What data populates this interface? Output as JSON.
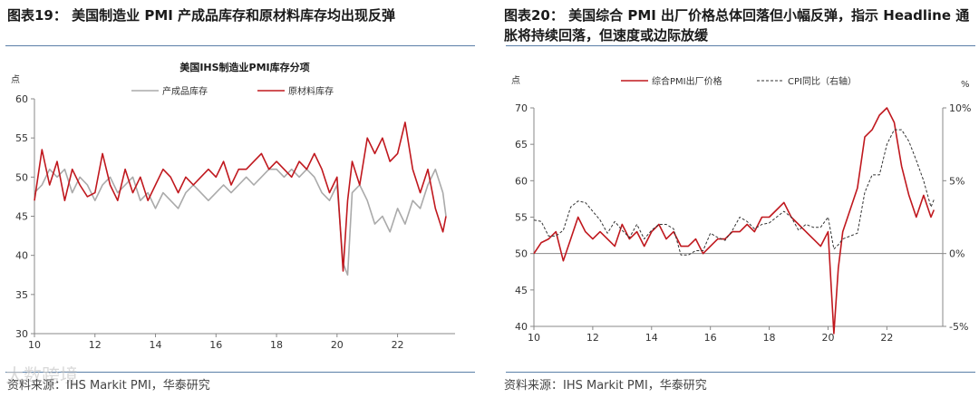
{
  "left": {
    "fig_label": "图表19：",
    "fig_title": "美国制造业 PMI 产成品库存和原材料库存均出现反弹",
    "source": "资料来源：IHS Markit PMI，华泰研究",
    "watermark": "大数跨境",
    "colors": {
      "finished": "#aaaaaa",
      "raw": "#c0181e"
    }
  },
  "right": {
    "fig_label": "图表20：",
    "fig_title": "美国综合 PMI 出厂价格总体回落但小幅反弹，指示 Headline 通胀将持续回落，但速度或边际放缓",
    "source": "资料来源：IHS Markit PMI，华泰研究",
    "colors": {
      "pmi": "#c0181e",
      "cpi": "#333333"
    }
  },
  "chart_data": [
    {
      "type": "line",
      "title": "美国IHS制造业PMI库存分项",
      "ylabel": "点",
      "ylim": [
        30,
        60
      ],
      "yticks": [
        30,
        35,
        40,
        45,
        50,
        55,
        60
      ],
      "xlim": [
        2010,
        2023.9
      ],
      "xticks": [
        2010,
        2012,
        2014,
        2016,
        2018,
        2020,
        2022
      ],
      "xtick_labels": [
        "10",
        "12",
        "14",
        "16",
        "18",
        "20",
        "22"
      ],
      "series": [
        {
          "name": "产成品库存",
          "x": [
            2010.0,
            2010.25,
            2010.5,
            2010.75,
            2011.0,
            2011.25,
            2011.5,
            2011.75,
            2012.0,
            2012.25,
            2012.5,
            2012.75,
            2013.0,
            2013.25,
            2013.5,
            2013.75,
            2014.0,
            2014.25,
            2014.5,
            2014.75,
            2015.0,
            2015.25,
            2015.5,
            2015.75,
            2016.0,
            2016.25,
            2016.5,
            2016.75,
            2017.0,
            2017.25,
            2017.5,
            2017.75,
            2018.0,
            2018.25,
            2018.5,
            2018.75,
            2019.0,
            2019.25,
            2019.5,
            2019.75,
            2020.0,
            2020.2,
            2020.35,
            2020.5,
            2020.75,
            2021.0,
            2021.25,
            2021.5,
            2021.75,
            2022.0,
            2022.25,
            2022.5,
            2022.75,
            2023.0,
            2023.25,
            2023.5,
            2023.6
          ],
          "values": [
            48,
            49,
            51,
            50,
            51,
            48,
            50,
            49,
            47,
            49,
            50,
            48,
            49,
            50,
            47,
            48,
            46,
            48,
            47,
            46,
            48,
            49,
            48,
            47,
            48,
            49,
            48,
            49,
            50,
            49,
            50,
            51,
            51,
            50,
            51,
            50,
            51,
            50,
            48,
            47,
            49,
            39,
            37.5,
            48,
            49,
            47,
            44,
            45,
            43,
            46,
            44,
            47,
            46,
            49,
            51,
            48,
            45
          ]
        },
        {
          "name": "原材料库存",
          "x": [
            2010.0,
            2010.25,
            2010.5,
            2010.75,
            2011.0,
            2011.25,
            2011.5,
            2011.75,
            2012.0,
            2012.25,
            2012.5,
            2012.75,
            2013.0,
            2013.25,
            2013.5,
            2013.75,
            2014.0,
            2014.25,
            2014.5,
            2014.75,
            2015.0,
            2015.25,
            2015.5,
            2015.75,
            2016.0,
            2016.25,
            2016.5,
            2016.75,
            2017.0,
            2017.25,
            2017.5,
            2017.75,
            2018.0,
            2018.25,
            2018.5,
            2018.75,
            2019.0,
            2019.25,
            2019.5,
            2019.75,
            2020.0,
            2020.2,
            2020.35,
            2020.5,
            2020.75,
            2021.0,
            2021.25,
            2021.5,
            2021.75,
            2022.0,
            2022.25,
            2022.5,
            2022.75,
            2023.0,
            2023.25,
            2023.5,
            2023.6
          ],
          "values": [
            47,
            53.5,
            49,
            52,
            47,
            51,
            49,
            47.5,
            48,
            53,
            49,
            47,
            51,
            48,
            50,
            47,
            49,
            51,
            50,
            48,
            50,
            49,
            50,
            51,
            50,
            52,
            49,
            51,
            51,
            52,
            53,
            51,
            52,
            51,
            50,
            52,
            51,
            53,
            51,
            48,
            50,
            38,
            47,
            52,
            49,
            55,
            53,
            55,
            52,
            53,
            57,
            51,
            48,
            51,
            46,
            43,
            45
          ]
        }
      ]
    },
    {
      "type": "line",
      "ylabel": "点",
      "y2label": "%",
      "ylim": [
        40,
        70
      ],
      "yticks": [
        40,
        45,
        50,
        55,
        60,
        65,
        70
      ],
      "y2lim": [
        -5,
        10
      ],
      "y2ticks": [
        -5,
        0,
        5,
        10
      ],
      "y2tick_labels": [
        "-5%",
        "0%",
        "5%",
        "10%"
      ],
      "xlim": [
        2010,
        2023.9
      ],
      "xticks": [
        2010,
        2012,
        2014,
        2016,
        2018,
        2020,
        2022
      ],
      "xtick_labels": [
        "10",
        "12",
        "14",
        "16",
        "18",
        "20",
        "22"
      ],
      "series": [
        {
          "name": "综合PMI出厂价格",
          "axis": "left",
          "x": [
            2010.0,
            2010.25,
            2010.5,
            2010.75,
            2011.0,
            2011.25,
            2011.5,
            2011.75,
            2012.0,
            2012.25,
            2012.5,
            2012.75,
            2013.0,
            2013.25,
            2013.5,
            2013.75,
            2014.0,
            2014.25,
            2014.5,
            2014.75,
            2015.0,
            2015.25,
            2015.5,
            2015.75,
            2016.0,
            2016.25,
            2016.5,
            2016.75,
            2017.0,
            2017.25,
            2017.5,
            2017.75,
            2018.0,
            2018.25,
            2018.5,
            2018.75,
            2019.0,
            2019.25,
            2019.5,
            2019.75,
            2020.0,
            2020.2,
            2020.35,
            2020.5,
            2020.75,
            2021.0,
            2021.25,
            2021.5,
            2021.75,
            2022.0,
            2022.25,
            2022.5,
            2022.75,
            2023.0,
            2023.25,
            2023.5,
            2023.6
          ],
          "values": [
            50,
            51.5,
            52,
            53,
            49,
            52,
            55,
            53,
            52,
            53,
            52,
            51,
            54,
            52,
            53,
            51,
            53,
            54,
            52,
            53,
            51,
            51,
            52,
            50,
            51,
            52,
            52,
            53,
            53,
            54,
            53,
            55,
            55,
            56,
            57,
            55,
            54,
            53,
            52,
            51,
            53,
            39,
            48,
            53,
            56,
            59,
            66,
            67,
            69,
            70,
            68,
            62,
            58,
            55,
            58,
            55,
            56
          ]
        },
        {
          "name": "CPI同比（右轴）",
          "axis": "right",
          "x": [
            2010.0,
            2010.25,
            2010.5,
            2010.75,
            2011.0,
            2011.25,
            2011.5,
            2011.75,
            2012.0,
            2012.25,
            2012.5,
            2012.75,
            2013.0,
            2013.25,
            2013.5,
            2013.75,
            2014.0,
            2014.25,
            2014.5,
            2014.75,
            2015.0,
            2015.25,
            2015.5,
            2015.75,
            2016.0,
            2016.25,
            2016.5,
            2016.75,
            2017.0,
            2017.25,
            2017.5,
            2017.75,
            2018.0,
            2018.25,
            2018.5,
            2018.75,
            2019.0,
            2019.25,
            2019.5,
            2019.75,
            2020.0,
            2020.2,
            2020.35,
            2020.5,
            2020.75,
            2021.0,
            2021.25,
            2021.5,
            2021.75,
            2022.0,
            2022.25,
            2022.5,
            2022.75,
            2023.0,
            2023.25,
            2023.5,
            2023.6
          ],
          "values": [
            2.3,
            2.2,
            1.2,
            1.2,
            1.6,
            3.2,
            3.6,
            3.5,
            2.9,
            2.3,
            1.4,
            2.2,
            1.6,
            1.1,
            2.0,
            1.0,
            1.6,
            2.0,
            2.0,
            1.7,
            -0.1,
            -0.1,
            0.2,
            0.2,
            1.4,
            1.1,
            0.9,
            1.6,
            2.5,
            2.2,
            1.7,
            2.0,
            2.1,
            2.5,
            2.9,
            2.5,
            1.6,
            2.0,
            1.8,
            1.8,
            2.5,
            0.3,
            0.6,
            1.0,
            1.2,
            1.4,
            4.2,
            5.4,
            5.4,
            7.5,
            8.5,
            8.5,
            7.7,
            6.4,
            5.0,
            3.2,
            3.7
          ]
        }
      ]
    }
  ]
}
